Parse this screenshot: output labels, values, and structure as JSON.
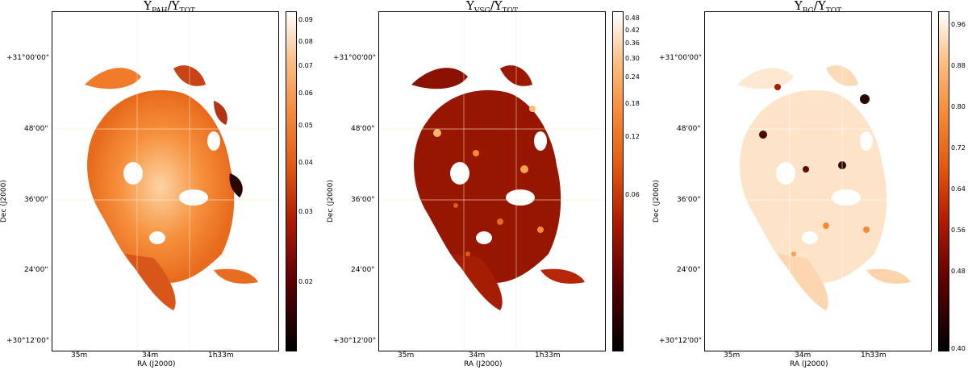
{
  "panels": [
    {
      "title_main": "Y",
      "title_sub": "PAH",
      "title_rest": "/Y",
      "title_sub2": "TOT",
      "ylabel": "Dec (J2000)",
      "xlabel": "RA (J2000)",
      "yticks": [
        "+31°00'00\"",
        "48'00\"",
        "36'00\"",
        "24'00\"",
        "+30°12'00\""
      ],
      "xticks": [
        "35m",
        "34m",
        "1h33m"
      ],
      "colorbar_ticks": [
        "0.09",
        "0.08",
        "0.07",
        "0.06",
        "0.05",
        "0.04",
        "0.03",
        "0.02"
      ],
      "colormap": "gist_heat"
    },
    {
      "title_main": "Y",
      "title_sub": "VSG",
      "title_rest": "/Y",
      "title_sub2": "TOT",
      "ylabel": "Dec (J2000)",
      "xlabel": "RA (J2000)",
      "yticks": [
        "+31°00'00\"",
        "48'00\"",
        "36'00\"",
        "24'00\"",
        "+30°12'00\""
      ],
      "xticks": [
        "35m",
        "34m",
        "1h33m"
      ],
      "colorbar_ticks": [
        "0.48",
        "0.42",
        "0.36",
        "0.30",
        "0.24",
        "0.18",
        "0.12",
        "0.06"
      ],
      "colormap": "gist_heat"
    },
    {
      "title_main": "Y",
      "title_sub": "BG",
      "title_rest": "/Y",
      "title_sub2": "TOT",
      "ylabel": "Dec (J2000)",
      "xlabel": "RA (J2000)",
      "yticks": [
        "+31°00'00\"",
        "48'00\"",
        "36'00\"",
        "24'00\"",
        "+30°12'00\""
      ],
      "xticks": [
        "35m",
        "34m",
        "1h33m"
      ],
      "colorbar_ticks": [
        "0.96",
        "0.88",
        "0.80",
        "0.72",
        "0.64",
        "0.56",
        "0.48",
        "0.40"
      ],
      "colormap": "gist_heat"
    }
  ]
}
